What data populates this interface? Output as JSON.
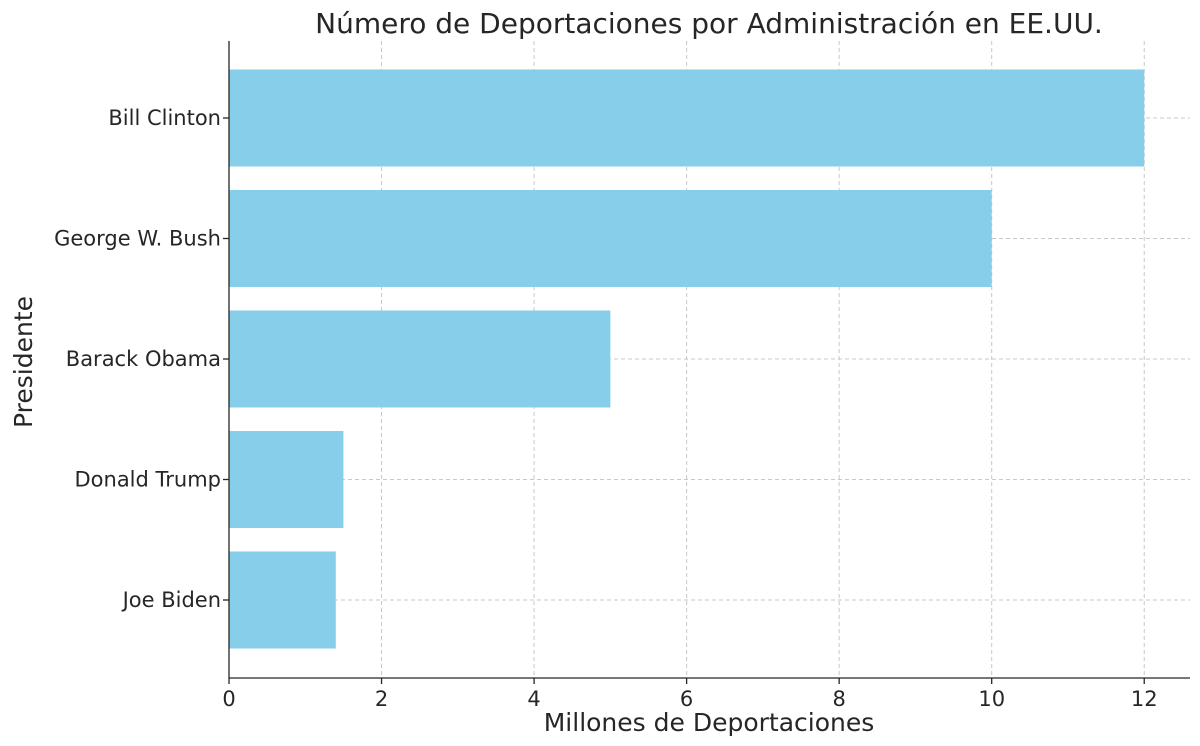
{
  "chart_data": {
    "type": "bar",
    "orientation": "horizontal",
    "title": "Número de Deportaciones por Administración en EE.UU.",
    "xlabel": "Millones de Deportaciones",
    "ylabel": "Presidente",
    "categories": [
      "Bill Clinton",
      "George W. Bush",
      "Barack Obama",
      "Donald Trump",
      "Joe Biden"
    ],
    "values": [
      12,
      10,
      5,
      1.5,
      1.4
    ],
    "xlim": [
      0,
      12.6
    ],
    "xticks": [
      0,
      2,
      4,
      6,
      8,
      10,
      12
    ],
    "grid": true,
    "bar_color": "#87ceeb"
  }
}
